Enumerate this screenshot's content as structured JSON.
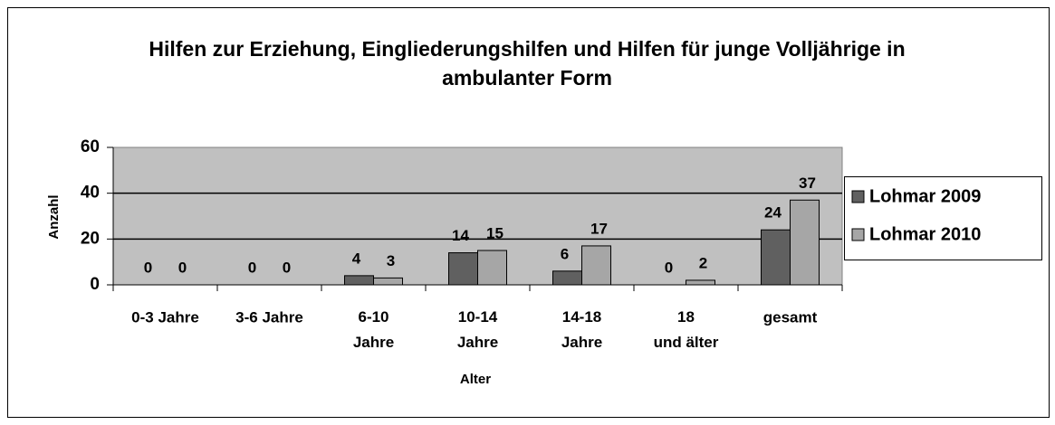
{
  "chart_data": {
    "type": "bar",
    "title": "Hilfen zur Erziehung, Eingliederungshilfen und Hilfen für junge Volljährige in ambulanter Form",
    "x_label": "Alter",
    "y_label": "Anzahl",
    "categories": [
      "0-3 Jahre",
      "3-6 Jahre",
      "6-10 Jahre",
      "10-14 Jahre",
      "14-18 Jahre",
      "18 und älter",
      "gesamt"
    ],
    "series": [
      {
        "name": "Lohmar 2009",
        "color": "#606060",
        "values": [
          0,
          0,
          4,
          14,
          6,
          0,
          24
        ]
      },
      {
        "name": "Lohmar 2010",
        "color": "#a6a6a6",
        "values": [
          0,
          0,
          3,
          15,
          17,
          2,
          37
        ]
      }
    ],
    "ylim": [
      0,
      60
    ],
    "yticks": [
      0,
      20,
      40,
      60
    ],
    "grid": true,
    "legend": "right"
  }
}
